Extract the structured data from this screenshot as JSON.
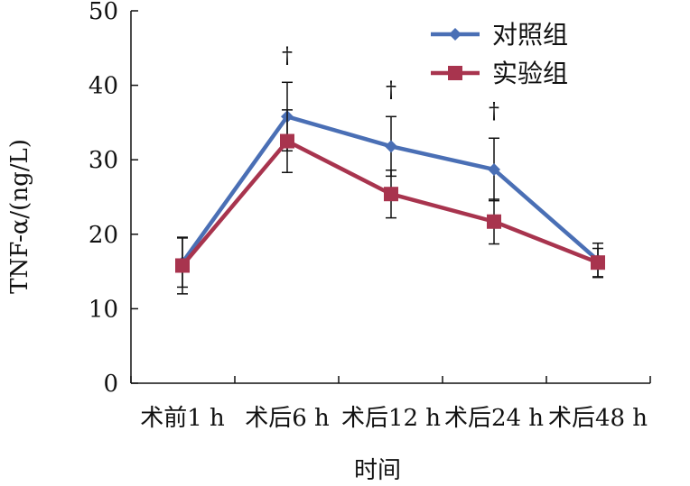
{
  "chart_data": {
    "type": "line",
    "categories": [
      "术前1 h",
      "术后6 h",
      "术后12 h",
      "术后24 h",
      "术后48 h"
    ],
    "xlabel": "时间",
    "ylabel": "TNF-α/(ng/L)",
    "ylim": [
      0,
      50
    ],
    "yticks": [
      0,
      10,
      20,
      30,
      40,
      50
    ],
    "grid": false,
    "legend_position": "top-right",
    "series": [
      {
        "name": "对照组",
        "color": "#4a6fb5",
        "marker": "diamond",
        "values": [
          16.2,
          35.8,
          31.8,
          28.7,
          16.5
        ],
        "error": [
          3.3,
          4.6,
          4.0,
          4.2,
          2.3
        ]
      },
      {
        "name": "实验组",
        "color": "#a8344e",
        "marker": "square",
        "values": [
          15.8,
          32.5,
          25.4,
          21.7,
          16.2
        ],
        "error": [
          3.8,
          4.2,
          3.2,
          3.0,
          1.9
        ]
      }
    ],
    "annotations": [
      {
        "category_index": 1,
        "text": "†"
      },
      {
        "category_index": 2,
        "text": "†"
      },
      {
        "category_index": 3,
        "text": "†"
      }
    ]
  }
}
